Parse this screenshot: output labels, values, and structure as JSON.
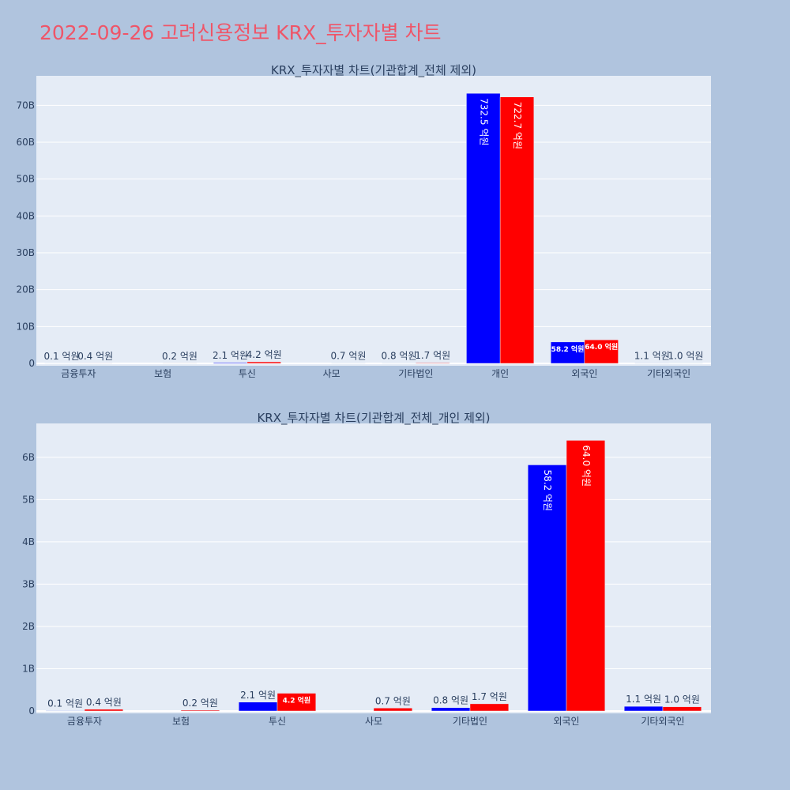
{
  "page": {
    "title": "2022-09-26 고려신용정보 KRX_투자자별 차트"
  },
  "colors": {
    "background": "#b0c4de",
    "plot_bg": "#e5ecf6",
    "grid": "#ffffff",
    "title": "#ef5568",
    "text": "#2a3f5f",
    "buy": "#0000ff",
    "sell": "#ff0000"
  },
  "chart_data": [
    {
      "type": "bar",
      "title": "KRX_투자자별 차트(기관합계_전체 제외)",
      "categories": [
        "금융투자",
        "보험",
        "투신",
        "사모",
        "기타법인",
        "개인",
        "외국인",
        "기타외국인"
      ],
      "series": [
        {
          "color": "#0000ff",
          "values": [
            0.01,
            0.0,
            0.21,
            0.0,
            0.08,
            73.25,
            5.82,
            0.11
          ],
          "labels": [
            "0.1 억원",
            "",
            "2.1 억원",
            "",
            "0.8 억원",
            "732.5 억원",
            "58.2 억원",
            "1.1 억원"
          ]
        },
        {
          "color": "#ff0000",
          "values": [
            0.04,
            0.02,
            0.42,
            0.07,
            0.17,
            72.27,
            6.4,
            0.1
          ],
          "labels": [
            "0.4 억원",
            "0.2 억원",
            "4.2 억원",
            "0.7 억원",
            "1.7 억원",
            "722.7 억원",
            "64.0 억원",
            "1.0 억원"
          ]
        }
      ],
      "ylim": [
        0,
        78
      ],
      "yticks": [
        0,
        10,
        20,
        30,
        40,
        50,
        60,
        70
      ],
      "ytick_labels": [
        "0",
        "10B",
        "20B",
        "30B",
        "40B",
        "50B",
        "60B",
        "70B"
      ],
      "grid": true
    },
    {
      "type": "bar",
      "title": "KRX_투자자별 차트(기관합계_전체_개인 제외)",
      "categories": [
        "금융투자",
        "보험",
        "투신",
        "사모",
        "기타법인",
        "외국인",
        "기타외국인"
      ],
      "series": [
        {
          "color": "#0000ff",
          "values": [
            0.01,
            0.0,
            0.21,
            0.0,
            0.08,
            5.82,
            0.11
          ],
          "labels": [
            "0.1 억원",
            "",
            "2.1 억원",
            "",
            "0.8 억원",
            "58.2 억원",
            "1.1 억원"
          ]
        },
        {
          "color": "#ff0000",
          "values": [
            0.04,
            0.02,
            0.42,
            0.07,
            0.17,
            6.4,
            0.1
          ],
          "labels": [
            "0.4 억원",
            "0.2 억원",
            "4.2 억원",
            "0.7 억원",
            "1.7 억원",
            "64.0 억원",
            "1.0 억원"
          ]
        }
      ],
      "ylim": [
        0,
        6.8
      ],
      "yticks": [
        0,
        1,
        2,
        3,
        4,
        5,
        6
      ],
      "ytick_labels": [
        "0",
        "1B",
        "2B",
        "3B",
        "4B",
        "5B",
        "6B"
      ],
      "grid": true
    }
  ]
}
